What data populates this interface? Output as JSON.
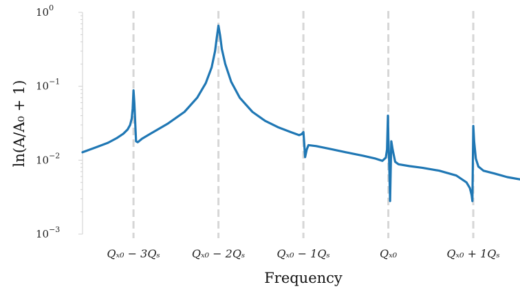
{
  "chart_data": {
    "type": "line",
    "xlabel": "Frequency",
    "ylabel": "ln(A/A₀ + 1)",
    "yscale": "log",
    "ylim": [
      0.001,
      1
    ],
    "xlim": [
      -3.6,
      1.55
    ],
    "grid": false,
    "yticks": [
      {
        "value": 1,
        "base": "10",
        "exp": "0"
      },
      {
        "value": 0.1,
        "base": "10",
        "exp": "−1"
      },
      {
        "value": 0.01,
        "base": "10",
        "exp": "−2"
      },
      {
        "value": 0.001,
        "base": "10",
        "exp": "−3"
      }
    ],
    "markers": [
      {
        "x": -3,
        "label": "Qₓ₀ − 3Qₛ"
      },
      {
        "x": -2,
        "label": "Qₓ₀ − 2Qₛ"
      },
      {
        "x": -1,
        "label": "Qₓ₀ − 1Qₛ"
      },
      {
        "x": 0,
        "label": "Qₓ₀"
      },
      {
        "x": 1,
        "label": "Qₓ₀ + 1Qₛ"
      }
    ],
    "series": [
      {
        "color": "#1f77b4",
        "points": [
          [
            -3.6,
            0.0128
          ],
          [
            -3.45,
            0.0148
          ],
          [
            -3.3,
            0.0172
          ],
          [
            -3.2,
            0.0198
          ],
          [
            -3.12,
            0.0228
          ],
          [
            -3.07,
            0.026
          ],
          [
            -3.04,
            0.03
          ],
          [
            -3.02,
            0.037
          ],
          [
            -3.01,
            0.05
          ],
          [
            -3.0,
            0.088
          ],
          [
            -2.99,
            0.06
          ],
          [
            -2.97,
            0.018
          ],
          [
            -2.95,
            0.0175
          ],
          [
            -2.9,
            0.0195
          ],
          [
            -2.8,
            0.0228
          ],
          [
            -2.6,
            0.031
          ],
          [
            -2.4,
            0.045
          ],
          [
            -2.25,
            0.07
          ],
          [
            -2.15,
            0.11
          ],
          [
            -2.08,
            0.18
          ],
          [
            -2.04,
            0.3
          ],
          [
            -2.02,
            0.45
          ],
          [
            -2.0,
            0.66
          ],
          [
            -1.98,
            0.48
          ],
          [
            -1.96,
            0.32
          ],
          [
            -1.92,
            0.2
          ],
          [
            -1.85,
            0.115
          ],
          [
            -1.75,
            0.07
          ],
          [
            -1.6,
            0.045
          ],
          [
            -1.45,
            0.034
          ],
          [
            -1.3,
            0.028
          ],
          [
            -1.15,
            0.024
          ],
          [
            -1.05,
            0.0218
          ],
          [
            -1.02,
            0.0225
          ],
          [
            -1.0,
            0.024
          ],
          [
            -0.99,
            0.017
          ],
          [
            -0.98,
            0.011
          ],
          [
            -0.96,
            0.014
          ],
          [
            -0.94,
            0.016
          ],
          [
            -0.85,
            0.0155
          ],
          [
            -0.7,
            0.0143
          ],
          [
            -0.5,
            0.0128
          ],
          [
            -0.3,
            0.0115
          ],
          [
            -0.15,
            0.0105
          ],
          [
            -0.07,
            0.0098
          ],
          [
            -0.03,
            0.0108
          ],
          [
            -0.015,
            0.014
          ],
          [
            -0.005,
            0.04
          ],
          [
            0.0,
            0.02
          ],
          [
            0.01,
            0.0095
          ],
          [
            0.02,
            0.0028
          ],
          [
            0.035,
            0.018
          ],
          [
            0.05,
            0.014
          ],
          [
            0.08,
            0.0095
          ],
          [
            0.12,
            0.0088
          ],
          [
            0.25,
            0.0083
          ],
          [
            0.4,
            0.0079
          ],
          [
            0.6,
            0.0072
          ],
          [
            0.8,
            0.0062
          ],
          [
            0.92,
            0.005
          ],
          [
            0.96,
            0.0042
          ],
          [
            0.98,
            0.0034
          ],
          [
            0.99,
            0.0028
          ],
          [
            1.0,
            0.029
          ],
          [
            1.01,
            0.018
          ],
          [
            1.03,
            0.0105
          ],
          [
            1.06,
            0.0082
          ],
          [
            1.12,
            0.0072
          ],
          [
            1.25,
            0.0066
          ],
          [
            1.4,
            0.0059
          ],
          [
            1.55,
            0.0055
          ]
        ]
      }
    ]
  }
}
